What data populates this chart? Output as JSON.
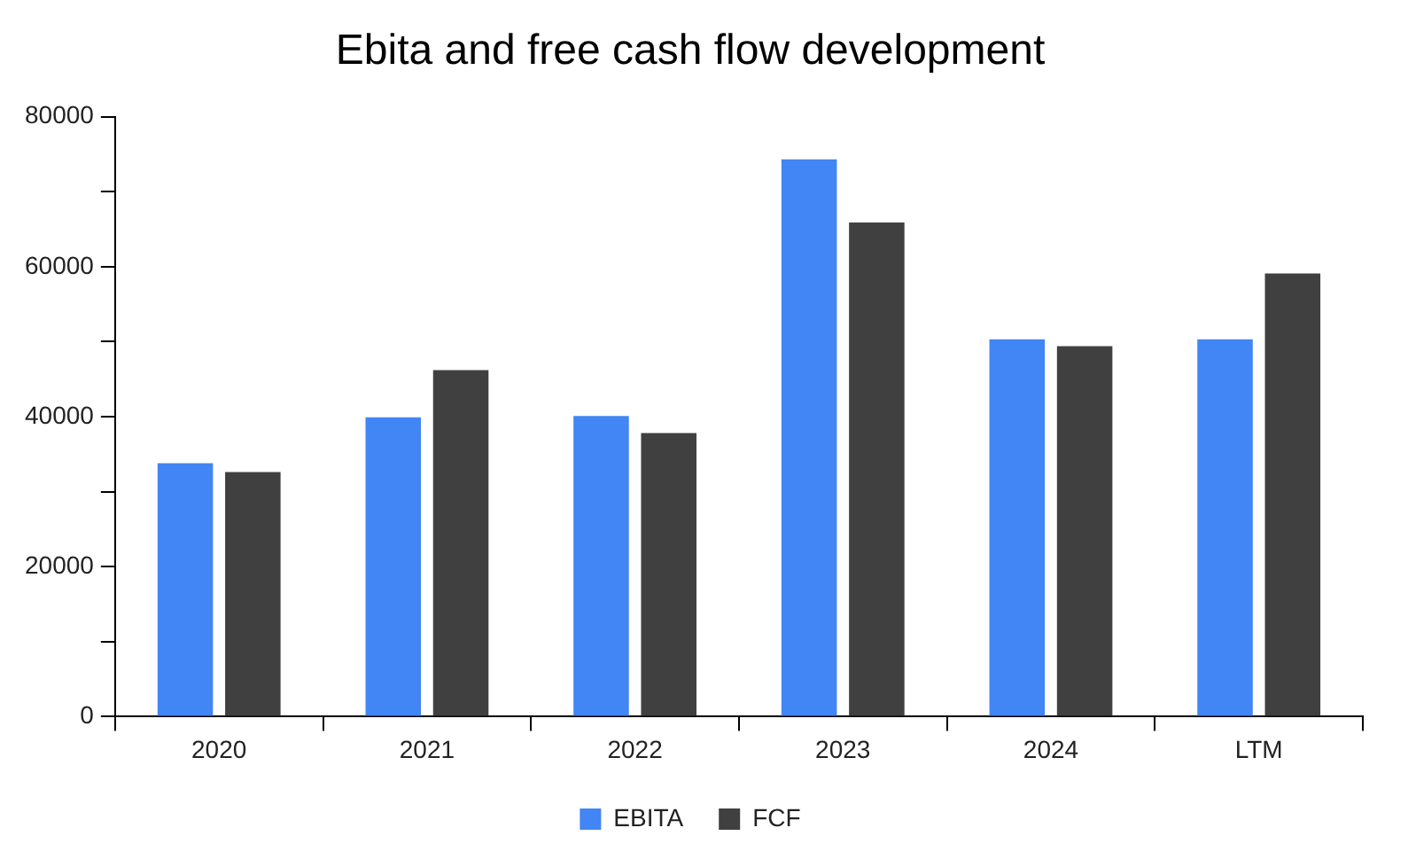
{
  "chart_data": {
    "type": "bar",
    "title": "Ebita and free cash flow development",
    "categories": [
      "2020",
      "2021",
      "2022",
      "2023",
      "2024",
      "LTM"
    ],
    "series": [
      {
        "name": "EBITA",
        "color": "#4285f4",
        "values": [
          33800,
          39900,
          40100,
          74300,
          50300,
          50300
        ]
      },
      {
        "name": "FCF",
        "color": "#404040",
        "values": [
          32600,
          46200,
          37800,
          65900,
          49400,
          59100
        ]
      }
    ],
    "ylim": [
      0,
      80000
    ],
    "yticks": [
      0,
      {
        "value": 10000,
        "label": null
      },
      20000,
      {
        "value": 30000,
        "label": null
      },
      40000,
      {
        "value": 50000,
        "label": null
      },
      60000,
      {
        "value": 70000,
        "label": null
      },
      80000
    ],
    "grid": false,
    "legend": "bottom"
  }
}
